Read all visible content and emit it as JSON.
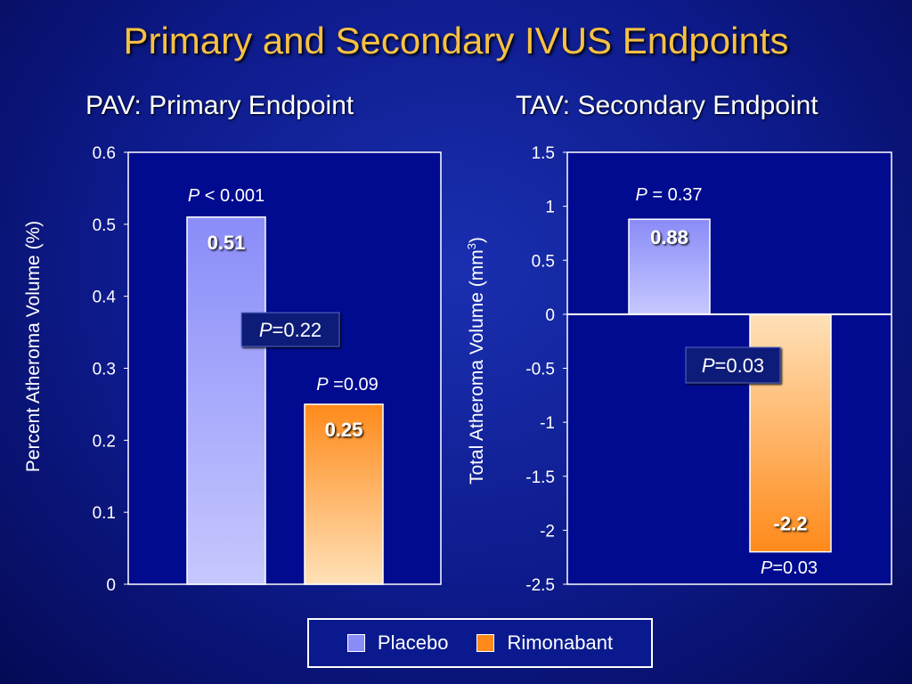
{
  "title": "Primary and Secondary IVUS Endpoints",
  "colors": {
    "title": "#f6c044",
    "plot_bg": "#000b8f",
    "placebo_top": "#8a8cf8",
    "placebo_bottom": "#c6c8ff",
    "rimonabant_top": "#ff8a1a",
    "rimonabant_bottom": "#ffe1b8"
  },
  "legend": {
    "placebo": "Placebo",
    "rimonabant": "Rimonabant"
  },
  "chart_data": [
    {
      "type": "bar",
      "title": "PAV: Primary Endpoint",
      "ylabel": "Percent Atheroma Volume (%)",
      "xlabel": "",
      "ylim": [
        0,
        0.6
      ],
      "yticks": [
        "0",
        "0.1",
        "0.2",
        "0.3",
        "0.4",
        "0.5",
        "0.6"
      ],
      "grid": false,
      "series": [
        {
          "name": "Placebo",
          "values": [
            0.51
          ]
        },
        {
          "name": "Rimonabant",
          "values": [
            0.25
          ]
        }
      ],
      "data_labels": [
        "0.51",
        "0.25"
      ],
      "annotations": [
        {
          "italic": "P",
          "text": " < 0.001"
        },
        {
          "italic": "P",
          "text": " =0.09"
        },
        {
          "italic": "P",
          "text": "=0.22",
          "boxed": true
        }
      ]
    },
    {
      "type": "bar",
      "title": "TAV: Secondary Endpoint",
      "ylabel": "Total Atheroma Volume (mm",
      "ylabel_sup": "3",
      "ylabel_suffix": ")",
      "xlabel": "",
      "ylim": [
        -2.5,
        1.5
      ],
      "yticks": [
        "-2.5",
        "-2",
        "-1.5",
        "-1",
        "-0.5",
        "0",
        "0.5",
        "1",
        "1.5"
      ],
      "grid": false,
      "series": [
        {
          "name": "Placebo",
          "values": [
            0.88
          ]
        },
        {
          "name": "Rimonabant",
          "values": [
            -2.2
          ]
        }
      ],
      "data_labels": [
        "0.88",
        "-2.2"
      ],
      "annotations": [
        {
          "italic": "P",
          "text": " = 0.37"
        },
        {
          "italic": "P",
          "text": "=0.03"
        },
        {
          "italic": "P",
          "text": "=0.03",
          "boxed": true
        }
      ]
    }
  ]
}
